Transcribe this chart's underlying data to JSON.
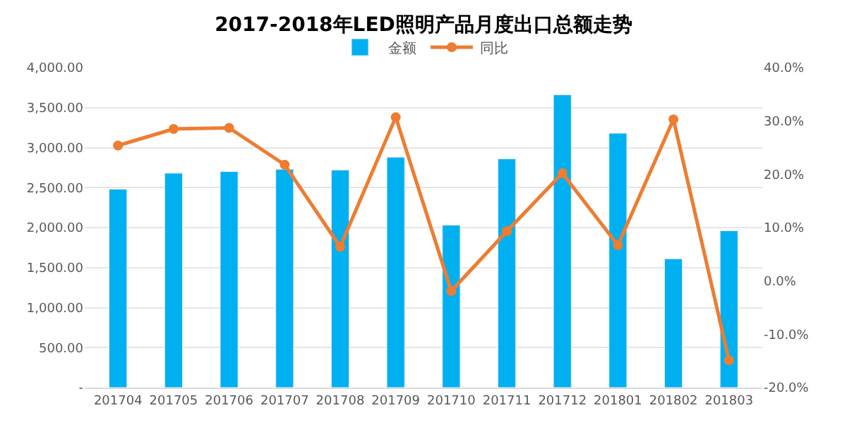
{
  "chart_data": {
    "type": "bar",
    "title": "2017-2018年LED照明产品月度出口总额走势",
    "categories": [
      "201704",
      "201705",
      "201706",
      "201707",
      "201708",
      "201709",
      "201710",
      "201711",
      "201712",
      "201801",
      "201802",
      "201803"
    ],
    "series": [
      {
        "name": "金额",
        "color": "#00b0f0",
        "values": [
          2480,
          2680,
          2700,
          2730,
          2720,
          2880,
          2030,
          2860,
          3660,
          3180,
          1610,
          1960
        ]
      },
      {
        "name": "同比",
        "type": "line",
        "axis": "y2",
        "color": "#ed7d31",
        "marker": "circle",
        "values": [
          25.4,
          28.5,
          28.7,
          21.8,
          6.4,
          30.7,
          -1.9,
          9.3,
          20.2,
          6.7,
          30.3,
          -14.9
        ]
      }
    ],
    "ylim": [
      0,
      4000
    ],
    "yticks": [
      {
        "value": 0,
        "label": "-"
      },
      {
        "value": 500,
        "label": "500.00"
      },
      {
        "value": 1000,
        "label": "1,000.00"
      },
      {
        "value": 1500,
        "label": "1,500.00"
      },
      {
        "value": 2000,
        "label": "2,000.00"
      },
      {
        "value": 2500,
        "label": "2,500.00"
      },
      {
        "value": 3000,
        "label": "3,000.00"
      },
      {
        "value": 3500,
        "label": "3,500.00"
      },
      {
        "value": 4000,
        "label": "4,000.00"
      }
    ],
    "y2lim": [
      -20,
      40
    ],
    "y2ticks": [
      {
        "value": -20,
        "label": "-20.0%"
      },
      {
        "value": -10,
        "label": "-10.0%"
      },
      {
        "value": 0,
        "label": "0.0%"
      },
      {
        "value": 10,
        "label": "10.0%"
      },
      {
        "value": 20,
        "label": "20.0%"
      },
      {
        "value": 30,
        "label": "30.0%"
      },
      {
        "value": 40,
        "label": "40.0%"
      }
    ],
    "grid": "y",
    "legend": "top"
  }
}
